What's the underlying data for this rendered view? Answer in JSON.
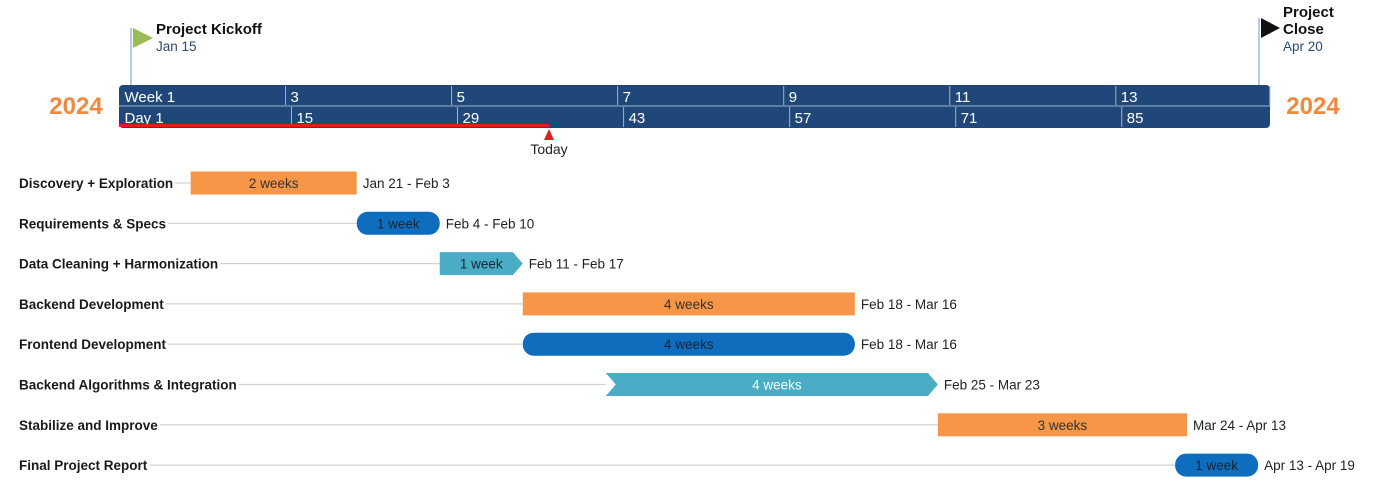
{
  "colors": {
    "scale": "#1f477a",
    "scale_divider": "#9fb4cf",
    "orange": "#f79646",
    "blue": "#0e6ebd",
    "teal": "#4bacc6",
    "today": "#e31c1c",
    "leader": "#d0d0d0",
    "kickoff_flag": "#9bbb59",
    "close_flag": "#111111",
    "milestone_line": "#9fb8d8"
  },
  "timeline": {
    "year_left": "2024",
    "year_right": "2024",
    "week_labels": [
      "Week 1",
      "3",
      "5",
      "7",
      "9",
      "11",
      "13"
    ],
    "day_labels": [
      "Day 1",
      "15",
      "29",
      "43",
      "57",
      "71",
      "85"
    ],
    "today_label": "Today",
    "today_day": 31.5
  },
  "milestones": [
    {
      "title": "Project Kickoff",
      "date": "Jan 15",
      "day": 1,
      "flag": "kickoff-flag"
    },
    {
      "title_lines": [
        "Project",
        "Close"
      ],
      "date": "Apr 20",
      "day": 97,
      "flag": "close-flag"
    }
  ],
  "chart_data": {
    "type": "gantt",
    "time_unit": "day of project (Day 1 = Jan 15, 2024)",
    "x_range": [
      1,
      98
    ],
    "tasks": [
      {
        "name": "Discovery + Exploration",
        "duration": "2 weeks",
        "dates": "Jan 21 - Feb 3",
        "start_day": 7,
        "end_day": 21,
        "color": "orange",
        "shape": "rect"
      },
      {
        "name": "Requirements & Specs",
        "duration": "1 week",
        "dates": "Feb 4 - Feb 10",
        "start_day": 21,
        "end_day": 28,
        "color": "blue",
        "shape": "rounded"
      },
      {
        "name": "Data Cleaning + Harmonization",
        "duration": "1 week",
        "dates": "Feb 11 - Feb 17",
        "start_day": 28,
        "end_day": 35,
        "color": "teal",
        "shape": "arrow"
      },
      {
        "name": "Backend Development",
        "duration": "4 weeks",
        "dates": "Feb 18 - Mar 16",
        "start_day": 35,
        "end_day": 63,
        "color": "orange",
        "shape": "rect"
      },
      {
        "name": "Frontend Development",
        "duration": "4 weeks",
        "dates": "Feb 18 - Mar 16",
        "start_day": 35,
        "end_day": 63,
        "color": "blue",
        "shape": "rounded"
      },
      {
        "name": "Backend Algorithms & Integration",
        "duration": "4 weeks",
        "dates": "Feb 25 - Mar 23",
        "start_day": 42,
        "end_day": 70,
        "color": "teal",
        "shape": "chevron"
      },
      {
        "name": "Stabilize and Improve",
        "duration": "3 weeks",
        "dates": "Mar 24 - Apr 13",
        "start_day": 70,
        "end_day": 91,
        "color": "orange",
        "shape": "rect"
      },
      {
        "name": "Final Project Report",
        "duration": "1 week",
        "dates": "Apr 13 - Apr 19",
        "start_day": 90,
        "end_day": 97,
        "color": "blue",
        "shape": "rounded"
      }
    ]
  }
}
